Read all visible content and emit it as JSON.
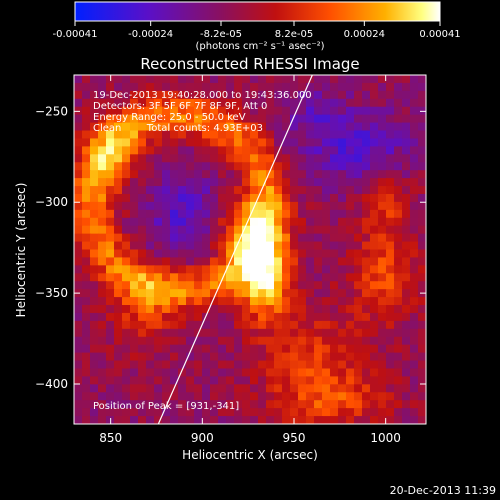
{
  "colorbar": {
    "ticks": [
      "-0.00041",
      "-0.00024",
      "-8.2e-05",
      "8.2e-05",
      "0.00024",
      "0.00041"
    ],
    "tick_values": [
      -0.00041,
      -0.00024,
      -8.2e-05,
      8.2e-05,
      0.00024,
      0.00041
    ],
    "range": [
      -0.00041,
      0.00041
    ],
    "units_label": "(photons cm⁻² s⁻¹ asec⁻²)",
    "colors": [
      "#0020ff",
      "#5a10c8",
      "#8a1060",
      "#c01010",
      "#ff5000",
      "#ffb000",
      "#ffff80",
      "#ffffff"
    ]
  },
  "chart_data": {
    "type": "heatmap",
    "title": "Reconstructed RHESSI Image",
    "xlabel": "Heliocentric X (arcsec)",
    "ylabel": "Heliocentric Y (arcsec)",
    "xlim": [
      830,
      1022
    ],
    "ylim": [
      -422,
      -230
    ],
    "x_ticks": [
      850,
      900,
      950,
      1000
    ],
    "y_ticks": [
      -250,
      -300,
      -350,
      -400
    ],
    "x_tick_labels": [
      "850",
      "900",
      "950",
      "1000"
    ],
    "y_tick_labels": [
      "−250",
      "−300",
      "−350",
      "−400"
    ],
    "info_lines": [
      "19-Dec-2013 19:40:28.000 to 19:43:36.000",
      "Detectors: 3F 5F 6F 7F 8F 9F, Att 0",
      "Energy Range: 25.0 - 50.0 keV",
      "Clean        Total counts: 4.93E+03"
    ],
    "peak_label": "Position of Peak = [931,-341]",
    "peak": [
      931,
      -341
    ],
    "limb_line": [
      [
        876,
        -422
      ],
      [
        960,
        -230
      ]
    ]
  },
  "footer": {
    "timestamp": "20-Dec-2013 11:39"
  }
}
